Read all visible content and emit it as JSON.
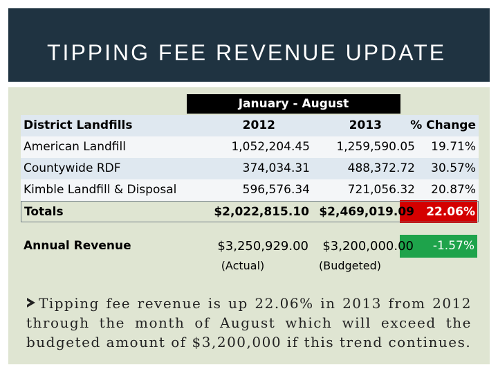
{
  "slide": {
    "title": "TIPPING FEE REVENUE UPDATE"
  },
  "table": {
    "period_label": "January - August",
    "headers": [
      "District Landfills",
      "2012",
      "2013",
      "% Change"
    ],
    "rows": [
      [
        "American Landfill",
        "1,052,204.45",
        "1,259,590.05",
        "19.71%"
      ],
      [
        "Countywide RDF",
        "374,034.31",
        "488,372.72",
        "30.57%"
      ],
      [
        "Kimble Landfill & Disposal",
        "596,576.34",
        "721,056.32",
        "20.87%"
      ]
    ],
    "totals": [
      "Totals",
      "$2,022,815.10",
      "$2,469,019.09",
      "22.06%"
    ],
    "annual": [
      "Annual Revenue",
      "$3,250,929.00",
      "$3,200,000.00",
      "-1.57%"
    ],
    "annual_notes": [
      "(Actual)",
      "(Budgeted)"
    ]
  },
  "bullets": [
    "Tipping fee revenue is up 22.06% in 2013 from 2012 through the month of August which will exceed the budgeted amount of $3,200,000 if this trend continues."
  ],
  "colors": {
    "title_bg": "#1f3341",
    "content_bg": "#dfe5d2",
    "negative": "#d40000",
    "positive": "#1ea34b"
  }
}
